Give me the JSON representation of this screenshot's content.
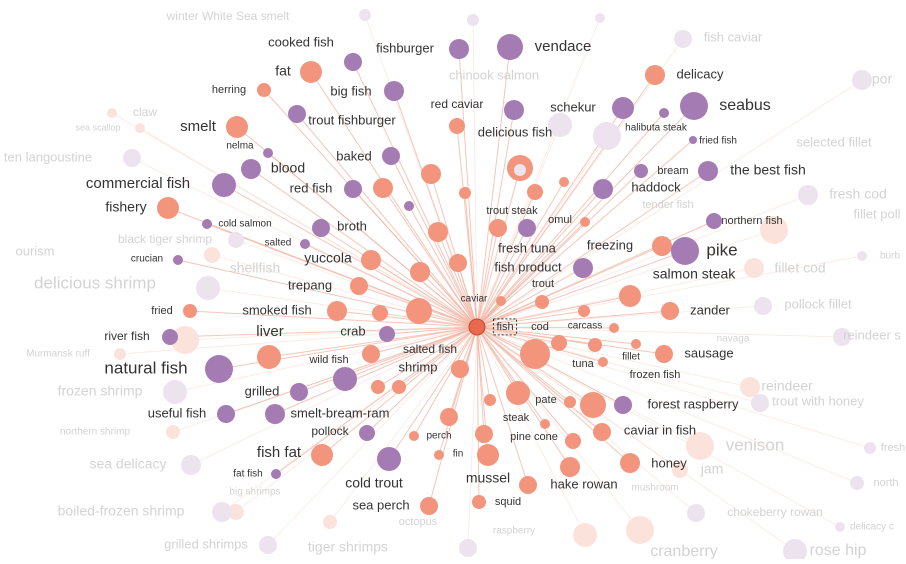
{
  "nodes": [
    {
      "label": "winter White Sea smelt"
    },
    {
      "label": "fish caviar"
    },
    {
      "label": "chinook salmon"
    },
    {
      "label": "por"
    },
    {
      "label": "claw"
    },
    {
      "label": "sea scallop"
    },
    {
      "label": "ten langoustine"
    },
    {
      "label": "selected fillet"
    },
    {
      "label": "fresh cod"
    },
    {
      "label": "fillet poll"
    },
    {
      "label": "tender fish"
    },
    {
      "label": "black tiger shrimp"
    },
    {
      "label": "ourism"
    },
    {
      "label": "shellfish"
    },
    {
      "label": "fillet cod"
    },
    {
      "label": "burb"
    },
    {
      "label": "delicious shrimp"
    },
    {
      "label": "pollock fillet"
    },
    {
      "label": "navaga"
    },
    {
      "label": "reindeer s"
    },
    {
      "label": "Murmansk ruff"
    },
    {
      "label": "frozen shrimp"
    },
    {
      "label": "reindeer"
    },
    {
      "label": "trout with honey"
    },
    {
      "label": "northern shrimp"
    },
    {
      "label": "venison"
    },
    {
      "label": "sea delicacy"
    },
    {
      "label": "jam"
    },
    {
      "label": "fresh"
    },
    {
      "label": "mushroom"
    },
    {
      "label": "big shrimps"
    },
    {
      "label": "north"
    },
    {
      "label": "boiled-frozen shrimp"
    },
    {
      "label": "chokeberry rowan"
    },
    {
      "label": "octopus"
    },
    {
      "label": "delicacy c"
    },
    {
      "label": "raspberry"
    },
    {
      "label": "grilled shrimps"
    },
    {
      "label": "tiger shrimps"
    },
    {
      "label": "cranberry"
    },
    {
      "label": "rose hip"
    },
    {
      "label": "cooked fish"
    },
    {
      "label": "fishburger"
    },
    {
      "label": "vendace"
    },
    {
      "label": "fat"
    },
    {
      "label": "delicacy"
    },
    {
      "label": "herring"
    },
    {
      "label": "big fish"
    },
    {
      "label": "seabus"
    },
    {
      "label": "red caviar"
    },
    {
      "label": "schekur"
    },
    {
      "label": "smelt"
    },
    {
      "label": "trout fishburger"
    },
    {
      "label": "delicious fish"
    },
    {
      "label": "halibuta steak"
    },
    {
      "label": "fried fish"
    },
    {
      "label": "nelma"
    },
    {
      "label": "baked"
    },
    {
      "label": "blood"
    },
    {
      "label": "bream"
    },
    {
      "label": "the best fish"
    },
    {
      "label": "commercial fish"
    },
    {
      "label": "red fish"
    },
    {
      "label": "haddock"
    },
    {
      "label": "fishery"
    },
    {
      "label": "trout steak"
    },
    {
      "label": "omul"
    },
    {
      "label": "cold salmon"
    },
    {
      "label": "northern fish"
    },
    {
      "label": "broth"
    },
    {
      "label": "salted"
    },
    {
      "label": "freezing"
    },
    {
      "label": "pike"
    },
    {
      "label": "fresh tuna"
    },
    {
      "label": "crucian"
    },
    {
      "label": "yuccola"
    },
    {
      "label": "fish product"
    },
    {
      "label": "salmon steak"
    },
    {
      "label": "trepang"
    },
    {
      "label": "trout"
    },
    {
      "label": "caviar"
    },
    {
      "label": "fried"
    },
    {
      "label": "smoked fish"
    },
    {
      "label": "zander"
    },
    {
      "label": "fish"
    },
    {
      "label": "cod"
    },
    {
      "label": "carcass"
    },
    {
      "label": "liver"
    },
    {
      "label": "crab"
    },
    {
      "label": "river fish"
    },
    {
      "label": "salted fish"
    },
    {
      "label": "sausage"
    },
    {
      "label": "fillet"
    },
    {
      "label": "wild fish"
    },
    {
      "label": "natural fish"
    },
    {
      "label": "tuna"
    },
    {
      "label": "shrimp"
    },
    {
      "label": "frozen fish"
    },
    {
      "label": "grilled"
    },
    {
      "label": "pate"
    },
    {
      "label": "forest raspberry"
    },
    {
      "label": "useful fish"
    },
    {
      "label": "smelt-bream-ram"
    },
    {
      "label": "steak"
    },
    {
      "label": "pollock"
    },
    {
      "label": "perch"
    },
    {
      "label": "pine cone"
    },
    {
      "label": "caviar in fish"
    },
    {
      "label": "fish fat"
    },
    {
      "label": "fin"
    },
    {
      "label": "honey"
    },
    {
      "label": "fat fish"
    },
    {
      "label": "cold trout"
    },
    {
      "label": "mussel"
    },
    {
      "label": "hake rowan"
    },
    {
      "label": "sea perch"
    },
    {
      "label": "squid"
    }
  ]
}
